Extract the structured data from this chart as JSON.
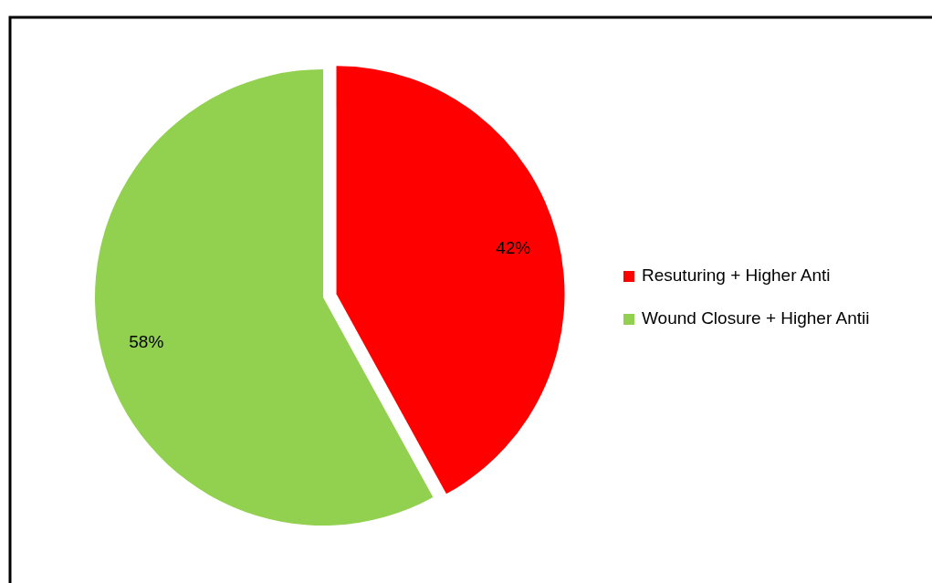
{
  "chart_data": {
    "type": "pie",
    "categories": [
      "Resuturing + Higher Anti",
      "Wound Closure + Higher Antii"
    ],
    "values": [
      42,
      58
    ],
    "value_labels": [
      "42%",
      "58%"
    ],
    "colors": [
      "#ff0000",
      "#92d050"
    ],
    "legend": "right"
  }
}
